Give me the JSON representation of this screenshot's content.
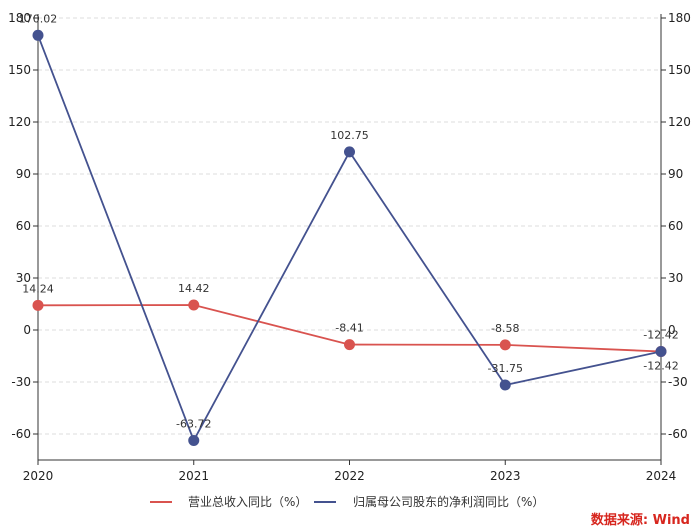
{
  "chart_data": {
    "type": "line",
    "categories": [
      "2020",
      "2021",
      "2022",
      "2023",
      "2024"
    ],
    "series": [
      {
        "name": "营业总收入同比（%）",
        "color": "#d9534f",
        "values": [
          14.24,
          14.42,
          -8.41,
          -8.58,
          -12.42
        ],
        "labels": [
          "14.24",
          "14.42",
          "-8.41",
          "-8.58",
          "-12.42"
        ]
      },
      {
        "name": "归属母公司股东的净利润同比（%）",
        "color": "#44528f",
        "values": [
          170.02,
          -63.72,
          102.75,
          -31.75,
          -12.42
        ],
        "labels": [
          "170.02",
          "-63.72",
          "102.75",
          "-31.75",
          "-12.42"
        ]
      }
    ],
    "ylim": [
      -75,
      180
    ],
    "yticks": [
      -60,
      -30,
      0,
      30,
      60,
      90,
      120,
      150,
      180
    ],
    "ytick_labels": [
      "-60",
      "-30",
      "0",
      "30",
      "60",
      "90",
      "120",
      "150",
      "180"
    ],
    "grid": true,
    "legend_position": "bottom-center",
    "source": "数据来源: Wind"
  }
}
